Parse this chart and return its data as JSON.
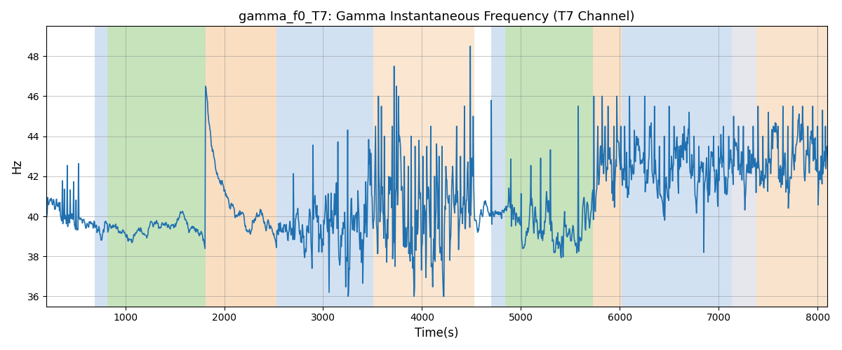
{
  "title": "gamma_f0_T7: Gamma Instantaneous Frequency (T7 Channel)",
  "xlabel": "Time(s)",
  "ylabel": "Hz",
  "xlim": [
    200,
    8100
  ],
  "ylim": [
    35.5,
    49.5
  ],
  "yticks": [
    36,
    38,
    40,
    42,
    44,
    46,
    48
  ],
  "xticks": [
    1000,
    2000,
    3000,
    4000,
    5000,
    6000,
    7000,
    8000
  ],
  "line_color": "#2070b0",
  "line_width": 1.2,
  "bg_regions": [
    {
      "xmin": 690,
      "xmax": 820,
      "color": "#aec9e8",
      "alpha": 0.55
    },
    {
      "xmin": 820,
      "xmax": 1810,
      "color": "#8ec87a",
      "alpha": 0.5
    },
    {
      "xmin": 1810,
      "xmax": 2530,
      "color": "#f5c99a",
      "alpha": 0.6
    },
    {
      "xmin": 2530,
      "xmax": 3510,
      "color": "#aec9e8",
      "alpha": 0.55
    },
    {
      "xmin": 3510,
      "xmax": 4530,
      "color": "#f5c99a",
      "alpha": 0.45
    },
    {
      "xmin": 4700,
      "xmax": 4840,
      "color": "#aec9e8",
      "alpha": 0.55
    },
    {
      "xmin": 4840,
      "xmax": 5730,
      "color": "#8ec87a",
      "alpha": 0.5
    },
    {
      "xmin": 5730,
      "xmax": 6020,
      "color": "#f5c99a",
      "alpha": 0.55
    },
    {
      "xmin": 6020,
      "xmax": 7130,
      "color": "#aec9e8",
      "alpha": 0.55
    },
    {
      "xmin": 7130,
      "xmax": 7380,
      "color": "#c8c8d8",
      "alpha": 0.45
    },
    {
      "xmin": 7380,
      "xmax": 8100,
      "color": "#f5c99a",
      "alpha": 0.5
    }
  ],
  "n_points": 1600,
  "t_start": 200,
  "t_end": 8100,
  "figsize": [
    12,
    5
  ],
  "dpi": 100,
  "seed": 137
}
